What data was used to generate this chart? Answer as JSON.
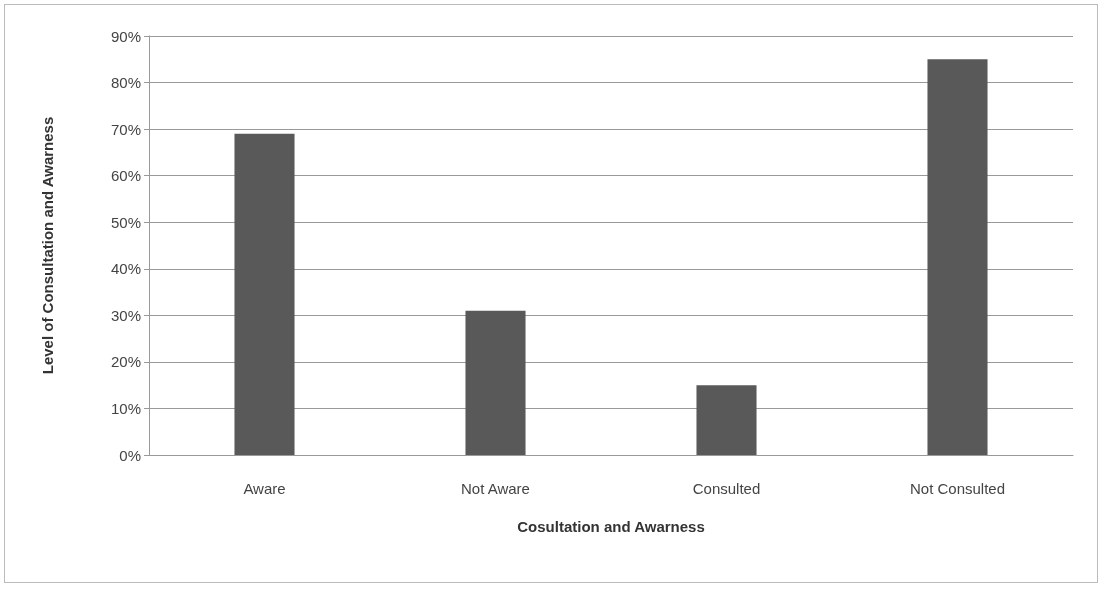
{
  "chart_data": {
    "type": "bar",
    "xlabel": "Cosultation and Awarness",
    "ylabel": "Level of Consultation and Awarness",
    "categories": [
      "Aware",
      "Not Aware",
      "Consulted",
      "Not Consulted"
    ],
    "values": [
      69,
      31,
      15,
      85
    ],
    "color": "#595959",
    "ylim": [
      0,
      90
    ],
    "yticks": [
      {
        "value": 0,
        "label": "0%"
      },
      {
        "value": 10,
        "label": "10%"
      },
      {
        "value": 20,
        "label": "20%"
      },
      {
        "value": 30,
        "label": "30%"
      },
      {
        "value": 40,
        "label": "40%"
      },
      {
        "value": 50,
        "label": "50%"
      },
      {
        "value": 60,
        "label": "60%"
      },
      {
        "value": 70,
        "label": "70%"
      },
      {
        "value": 80,
        "label": "80%"
      },
      {
        "value": 90,
        "label": "90%"
      }
    ],
    "grid": "y"
  }
}
